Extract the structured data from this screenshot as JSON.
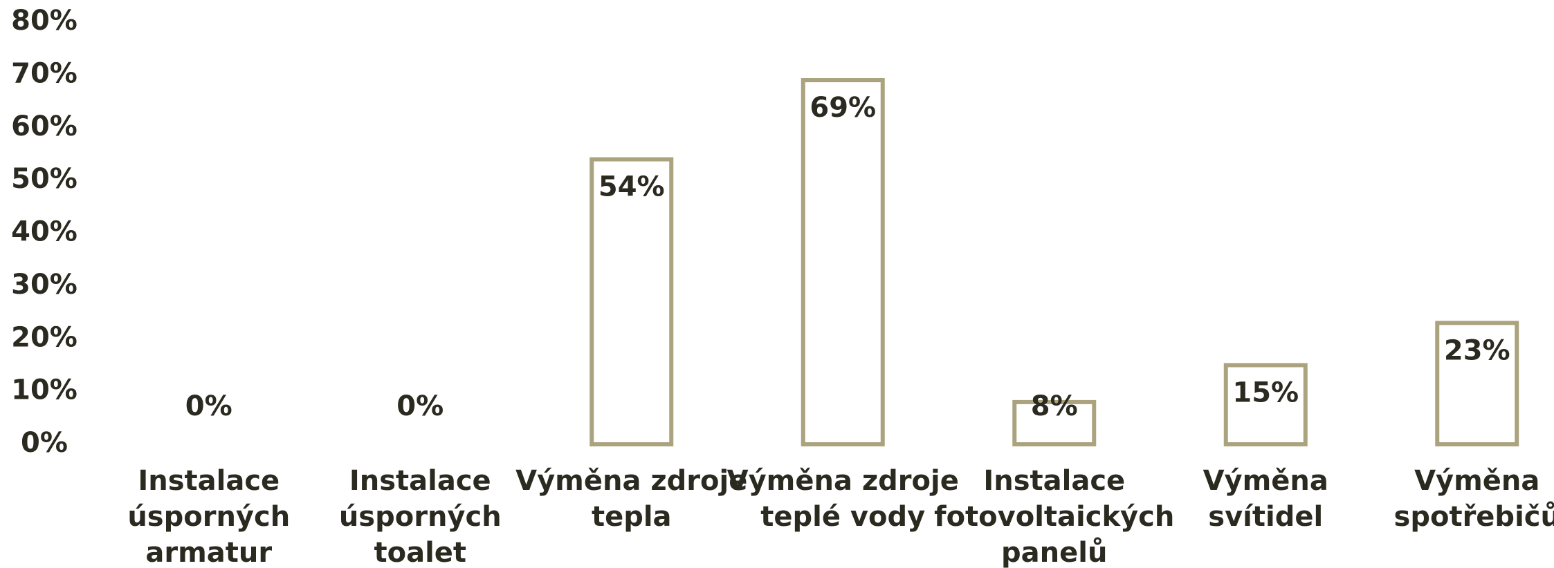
{
  "chart_data": {
    "type": "bar",
    "categories": [
      [
        "Instalace",
        "úsporných",
        "armatur"
      ],
      [
        "Instalace",
        "úsporných",
        "toalet"
      ],
      [
        "Výměna zdroje",
        "tepla"
      ],
      [
        "Výměna zdroje",
        "teplé vody"
      ],
      [
        "Instalace",
        "fotovoltaických",
        "panelů"
      ],
      [
        "Výměna",
        "svítidel"
      ],
      [
        "Výměna",
        "spotřebičů"
      ]
    ],
    "values": [
      0,
      0,
      54,
      69,
      8,
      15,
      23
    ],
    "value_labels": [
      "0%",
      "0%",
      "54%",
      "69%",
      "8%",
      "15%",
      "23%"
    ],
    "color": "#aaa37e",
    "ylim": [
      0,
      80
    ],
    "yticks": [
      {
        "value": 0,
        "label": "0%"
      },
      {
        "value": 10,
        "label": "10%"
      },
      {
        "value": 20,
        "label": "20%"
      },
      {
        "value": 30,
        "label": "30%"
      },
      {
        "value": 40,
        "label": "40%"
      },
      {
        "value": 50,
        "label": "50%"
      },
      {
        "value": 60,
        "label": "60%"
      },
      {
        "value": 70,
        "label": "70%"
      },
      {
        "value": 80,
        "label": "80%"
      }
    ],
    "grid": false
  }
}
